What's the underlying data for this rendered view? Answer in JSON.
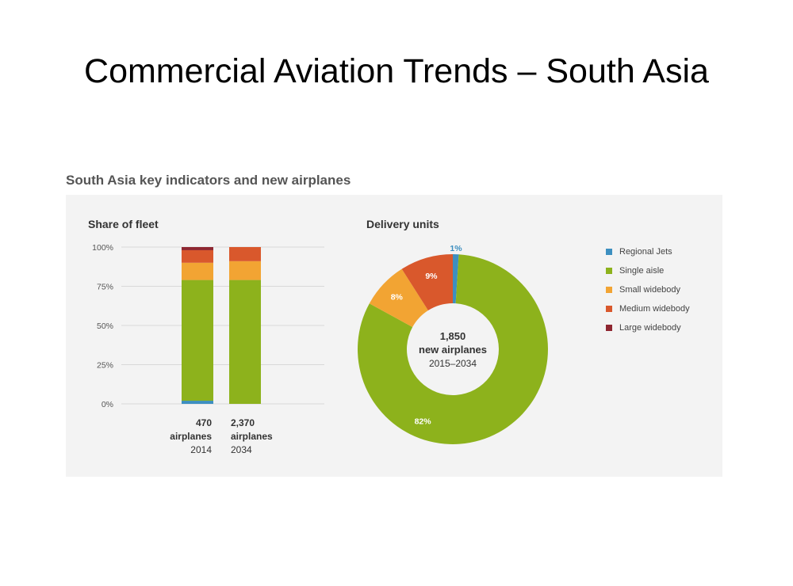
{
  "slide": {
    "title": "Commercial Aviation Trends – South Asia"
  },
  "figure": {
    "title": "South Asia key indicators and new airplanes"
  },
  "colors": {
    "Regional Jets": "#3d8fc0",
    "Single aisle": "#8db21c",
    "Small widebody": "#f2a433",
    "Medium widebody": "#d9582c",
    "Large widebody": "#8e2630"
  },
  "chart_data": [
    {
      "type": "bar",
      "stacked": true,
      "title": "Share of fleet",
      "categories": [
        {
          "count": "470",
          "unit": "airplanes",
          "year": "2014"
        },
        {
          "count": "2,370",
          "unit": "airplanes",
          "year": "2034"
        }
      ],
      "series": [
        {
          "name": "Regional Jets",
          "values": [
            2,
            0
          ]
        },
        {
          "name": "Single aisle",
          "values": [
            77,
            79
          ]
        },
        {
          "name": "Small widebody",
          "values": [
            11,
            12
          ]
        },
        {
          "name": "Medium widebody",
          "values": [
            8,
            9
          ]
        },
        {
          "name": "Large widebody",
          "values": [
            2,
            0
          ]
        }
      ],
      "ylim": [
        0,
        100
      ],
      "yticks": [
        "0%",
        "25%",
        "50%",
        "75%",
        "100%"
      ],
      "grid": true
    },
    {
      "type": "pie",
      "donut": true,
      "title": "Delivery units",
      "center_text": {
        "value": "1,850",
        "label": "new airplanes",
        "period": "2015–2034"
      },
      "slices": [
        {
          "name": "Regional Jets",
          "value": 1,
          "label": "1%"
        },
        {
          "name": "Single aisle",
          "value": 82,
          "label": "82%"
        },
        {
          "name": "Small widebody",
          "value": 8,
          "label": "8%"
        },
        {
          "name": "Medium widebody",
          "value": 9,
          "label": "9%"
        }
      ],
      "legend": [
        "Regional Jets",
        "Single aisle",
        "Small widebody",
        "Medium widebody",
        "Large widebody"
      ],
      "legend_position": "right"
    }
  ]
}
